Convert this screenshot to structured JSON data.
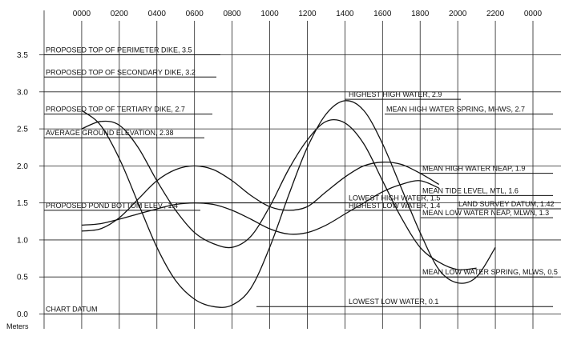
{
  "chart_data": {
    "type": "line",
    "y_label": "Meters",
    "x": [
      0,
      1,
      2,
      3,
      4,
      5,
      6,
      7,
      8,
      9,
      10,
      11,
      12,
      13,
      14,
      15,
      16,
      17,
      18,
      19,
      20,
      21,
      22
    ],
    "xlim": [
      -2,
      24
    ],
    "xticks": [
      {
        "value": 0,
        "label": "0000"
      },
      {
        "value": 2,
        "label": "0200"
      },
      {
        "value": 4,
        "label": "0400"
      },
      {
        "value": 6,
        "label": "0600"
      },
      {
        "value": 8,
        "label": "0800"
      },
      {
        "value": 10,
        "label": "1000"
      },
      {
        "value": 12,
        "label": "1200"
      },
      {
        "value": 14,
        "label": "1400"
      },
      {
        "value": 16,
        "label": "1600"
      },
      {
        "value": 18,
        "label": "1800"
      },
      {
        "value": 20,
        "label": "2000"
      },
      {
        "value": 22,
        "label": "2200"
      },
      {
        "value": 24,
        "label": "0000"
      }
    ],
    "ylim": [
      -0.2,
      4.1
    ],
    "yticks": [
      {
        "value": 0,
        "label": "0.0"
      },
      0.5,
      {
        "value": 1,
        "label": "1.0"
      },
      1.5,
      {
        "value": 2,
        "label": "2.0"
      },
      2.5,
      {
        "value": 3,
        "label": "3.0"
      },
      3.5
    ],
    "grid": true,
    "series": [
      {
        "color": "#111111",
        "values": [
          2.75,
          2.55,
          2.1,
          1.5,
          0.9,
          0.45,
          0.2,
          0.1,
          0.12,
          0.35,
          0.9,
          1.6,
          2.25,
          2.7,
          2.88,
          2.75,
          2.3,
          1.7,
          1.1,
          0.6,
          0.42,
          0.5,
          0.9
        ]
      },
      {
        "color": "#111111",
        "values": [
          2.5,
          2.6,
          2.55,
          2.25,
          1.8,
          1.4,
          1.1,
          0.95,
          0.9,
          1.05,
          1.45,
          1.95,
          2.35,
          2.6,
          2.58,
          2.3,
          1.8,
          1.3,
          0.9,
          0.7,
          0.6,
          0.62,
          null
        ]
      },
      {
        "color": "#111111",
        "values": [
          1.12,
          1.15,
          1.3,
          1.55,
          1.8,
          1.95,
          2.0,
          1.95,
          1.8,
          1.6,
          1.45,
          1.4,
          1.45,
          1.65,
          1.85,
          2.0,
          2.05,
          2.02,
          1.9,
          1.75,
          null,
          null,
          null
        ]
      },
      {
        "color": "#111111",
        "values": [
          1.2,
          1.22,
          1.28,
          1.35,
          1.42,
          1.48,
          1.5,
          1.48,
          1.4,
          1.28,
          1.15,
          1.08,
          1.1,
          1.2,
          1.35,
          1.5,
          1.65,
          1.75,
          1.8,
          1.7,
          null,
          null,
          null
        ]
      }
    ],
    "annotations": [
      {
        "text": "PROPOSED TOP OF PERIMETER DIKE, 3.5",
        "value": 3.5
      },
      {
        "text": "PROPOSED TOP OF SECONDARY DIKE, 3.2",
        "value": 3.2
      },
      {
        "text": "PROPOSED TOP OF TERTIARY DIKE, 2.7",
        "value": 2.7
      },
      {
        "text": "AVERAGE GROUND ELEVATION, 2.38",
        "value": 2.38
      },
      {
        "text": "PROPOSED POND BOTTOM ELEV., 1.4",
        "value": 1.4
      },
      {
        "text": "CHART DATUM",
        "value": 0
      },
      {
        "text": "HIGHEST HIGH WATER, 2.9",
        "value": 2.9
      },
      {
        "text": "MEAN HIGH WATER SPRING, MHWS, 2.7",
        "value": 2.7
      },
      {
        "text": "MEAN HIGH WATER NEAP, 1.9",
        "value": 1.9
      },
      {
        "text": "LOWEST HIGH WATER, 1.5",
        "value": 1.5
      },
      {
        "text": "HIGHEST LOW WATER, 1.4",
        "value": 1.4
      },
      {
        "text": "MEAN TIDE LEVEL, MTL, 1.6",
        "value": 1.6
      },
      {
        "text": "LAND SURVEY DATUM, 1.42",
        "value": 1.42
      },
      {
        "text": "MEAN LOW WATER NEAP, MLWN, 1.3",
        "value": 1.3
      },
      {
        "text": "MEAN LOW WATER SPRING, MLWS, 0.5",
        "value": 0.5
      },
      {
        "text": "LOWEST LOW WATER, 0.1",
        "value": 0.1
      }
    ]
  }
}
